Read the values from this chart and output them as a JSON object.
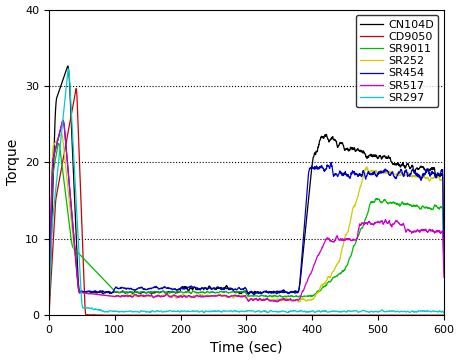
{
  "title": "",
  "xlabel": "Time (sec)",
  "ylabel": "Torque",
  "xlim": [
    0,
    600
  ],
  "ylim": [
    0,
    40
  ],
  "yticks": [
    0,
    10,
    20,
    30,
    40
  ],
  "xticks": [
    0,
    100,
    200,
    300,
    400,
    500,
    600
  ],
  "grid_yticks": [
    10,
    20,
    30
  ],
  "series": [
    {
      "label": "CN104D",
      "color": "#000000"
    },
    {
      "label": "CD9050",
      "color": "#cc0000"
    },
    {
      "label": "SR9011",
      "color": "#00bb00"
    },
    {
      "label": "SR252",
      "color": "#cccc00"
    },
    {
      "label": "SR454",
      "color": "#0000cc"
    },
    {
      "label": "SR517",
      "color": "#cc00cc"
    },
    {
      "label": "SR297",
      "color": "#00cccc"
    }
  ],
  "background_color": "#ffffff",
  "legend_fontsize": 8,
  "axis_fontsize": 10
}
